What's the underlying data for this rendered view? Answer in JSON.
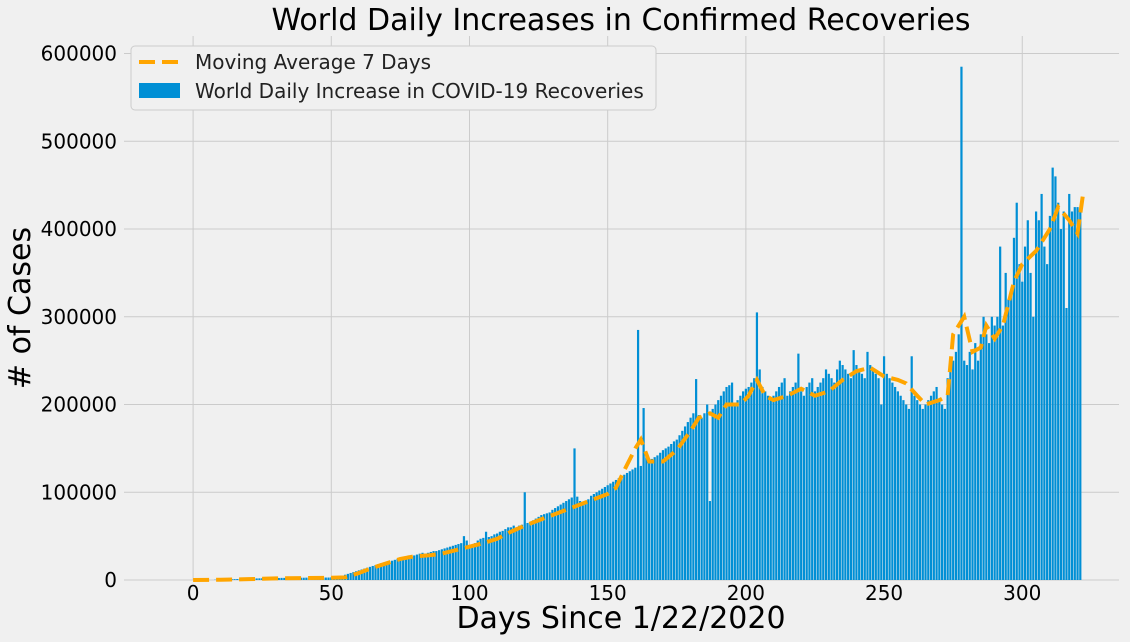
{
  "chart_data": {
    "type": "bar",
    "title": "World Daily Increases in Confirmed Recoveries",
    "xlabel": "Days Since 1/22/2020",
    "ylabel": "# of Cases",
    "xlim": [
      -25,
      335
    ],
    "ylim": [
      0,
      620000
    ],
    "x_ticks": [
      0,
      50,
      100,
      150,
      200,
      250,
      300
    ],
    "y_ticks": [
      0,
      100000,
      200000,
      300000,
      400000,
      500000,
      600000
    ],
    "grid": true,
    "legend": "top-left",
    "colors": {
      "bars": "#008fd5",
      "moving_average": "#ffa500",
      "background": "#f0f0f0",
      "grid": "#cbcbcb"
    },
    "series": [
      {
        "name": "World Daily Increase in COVID-19 Recoveries",
        "type": "bar",
        "values": [
          0,
          0,
          0,
          0,
          0,
          0,
          0,
          0,
          300,
          400,
          500,
          600,
          700,
          800,
          900,
          1000,
          1100,
          1200,
          1300,
          1400,
          1500,
          1600,
          1700,
          1800,
          1900,
          2000,
          2000,
          2100,
          2200,
          2200,
          2300,
          2300,
          2400,
          2400,
          2500,
          2500,
          2500,
          2600,
          2600,
          2600,
          2600,
          2700,
          2700,
          2700,
          2700,
          2700,
          2800,
          2800,
          2800,
          2800,
          3000,
          3500,
          4000,
          4500,
          5000,
          6000,
          7000,
          8000,
          9000,
          10000,
          11000,
          12000,
          13000,
          14000,
          15000,
          16000,
          17000,
          18000,
          19000,
          20000,
          20000,
          21000,
          22000,
          23000,
          24000,
          25000,
          26000,
          27000,
          28000,
          28000,
          28000,
          29000,
          30000,
          31000,
          30000,
          31000,
          32000,
          33000,
          33000,
          34000,
          35000,
          36000,
          37000,
          38000,
          39000,
          40000,
          41000,
          42000,
          50000,
          45000,
          40000,
          38000,
          42000,
          45000,
          47000,
          48000,
          55000,
          49000,
          50000,
          52000,
          53000,
          55000,
          56000,
          58000,
          60000,
          60000,
          62000,
          60000,
          62000,
          63000,
          100000,
          65000,
          66000,
          68000,
          70000,
          72000,
          74000,
          75000,
          76000,
          77000,
          80000,
          82000,
          84000,
          86000,
          88000,
          90000,
          92000,
          94000,
          150000,
          95000,
          90000,
          85000,
          88000,
          92000,
          96000,
          98000,
          100000,
          102000,
          104000,
          106000,
          108000,
          110000,
          112000,
          114000,
          116000,
          118000,
          120000,
          122000,
          124000,
          126000,
          128000,
          285000,
          130000,
          196000,
          140000,
          135000,
          138000,
          140000,
          142000,
          145000,
          148000,
          150000,
          152000,
          155000,
          158000,
          160000,
          165000,
          170000,
          175000,
          180000,
          185000,
          190000,
          229000,
          188000,
          185000,
          190000,
          200000,
          90000,
          195000,
          200000,
          205000,
          210000,
          215000,
          220000,
          222000,
          225000,
          200000,
          205000,
          210000,
          215000,
          218000,
          220000,
          225000,
          230000,
          305000,
          240000,
          220000,
          215000,
          210000,
          205000,
          210000,
          215000,
          220000,
          225000,
          230000,
          210000,
          215000,
          220000,
          225000,
          258000,
          215000,
          210000,
          220000,
          225000,
          230000,
          215000,
          220000,
          225000,
          230000,
          240000,
          235000,
          230000,
          225000,
          240000,
          250000,
          245000,
          240000,
          235000,
          230000,
          262000,
          245000,
          240000,
          235000,
          230000,
          260000,
          245000,
          240000,
          235000,
          230000,
          200000,
          255000,
          235000,
          230000,
          225000,
          220000,
          215000,
          210000,
          205000,
          200000,
          195000,
          255000,
          210000,
          205000,
          200000,
          195000,
          200000,
          205000,
          210000,
          215000,
          220000,
          205000,
          200000,
          195000,
          230000,
          240000,
          250000,
          260000,
          280000,
          585000,
          250000,
          245000,
          260000,
          240000,
          270000,
          250000,
          280000,
          300000,
          280000,
          270000,
          300000,
          290000,
          300000,
          380000,
          290000,
          350000,
          320000,
          330000,
          390000,
          430000,
          360000,
          340000,
          380000,
          410000,
          350000,
          300000,
          420000,
          410000,
          440000,
          380000,
          360000,
          415000,
          470000,
          460000,
          430000,
          400000,
          420000,
          310000,
          440000,
          420000,
          425000,
          425000,
          420000
        ]
      },
      {
        "name": "Moving Average 7 Days",
        "type": "line",
        "style": "dashed",
        "points": [
          [
            0,
            0
          ],
          [
            10,
            300
          ],
          [
            20,
            1000
          ],
          [
            30,
            1800
          ],
          [
            40,
            2200
          ],
          [
            50,
            2500
          ],
          [
            55,
            3000
          ],
          [
            60,
            8000
          ],
          [
            65,
            14000
          ],
          [
            70,
            19000
          ],
          [
            75,
            24000
          ],
          [
            80,
            27000
          ],
          [
            85,
            28000
          ],
          [
            90,
            30000
          ],
          [
            95,
            34000
          ],
          [
            100,
            38000
          ],
          [
            105,
            42000
          ],
          [
            110,
            47000
          ],
          [
            115,
            55000
          ],
          [
            120,
            62000
          ],
          [
            125,
            68000
          ],
          [
            130,
            74000
          ],
          [
            135,
            80000
          ],
          [
            140,
            86000
          ],
          [
            145,
            92000
          ],
          [
            150,
            98000
          ],
          [
            153,
            105000
          ],
          [
            156,
            125000
          ],
          [
            160,
            150000
          ],
          [
            162,
            160000
          ],
          [
            165,
            135000
          ],
          [
            170,
            135000
          ],
          [
            175,
            148000
          ],
          [
            180,
            170000
          ],
          [
            183,
            185000
          ],
          [
            187,
            190000
          ],
          [
            190,
            185000
          ],
          [
            193,
            200000
          ],
          [
            198,
            200000
          ],
          [
            201,
            210000
          ],
          [
            204,
            228000
          ],
          [
            207,
            210000
          ],
          [
            210,
            205000
          ],
          [
            215,
            210000
          ],
          [
            220,
            218000
          ],
          [
            225,
            210000
          ],
          [
            230,
            215000
          ],
          [
            235,
            228000
          ],
          [
            240,
            238000
          ],
          [
            245,
            242000
          ],
          [
            250,
            232000
          ],
          [
            255,
            228000
          ],
          [
            258,
            224000
          ],
          [
            262,
            210000
          ],
          [
            265,
            200000
          ],
          [
            270,
            205000
          ],
          [
            273,
            210000
          ],
          [
            275,
            280000
          ],
          [
            279,
            300000
          ],
          [
            282,
            260000
          ],
          [
            285,
            265000
          ],
          [
            287,
            290000
          ],
          [
            290,
            275000
          ],
          [
            293,
            290000
          ],
          [
            297,
            340000
          ],
          [
            300,
            360000
          ],
          [
            305,
            375000
          ],
          [
            310,
            400000
          ],
          [
            313,
            425000
          ],
          [
            317,
            410000
          ],
          [
            320,
            395000
          ],
          [
            322,
            440000
          ]
        ]
      }
    ]
  }
}
